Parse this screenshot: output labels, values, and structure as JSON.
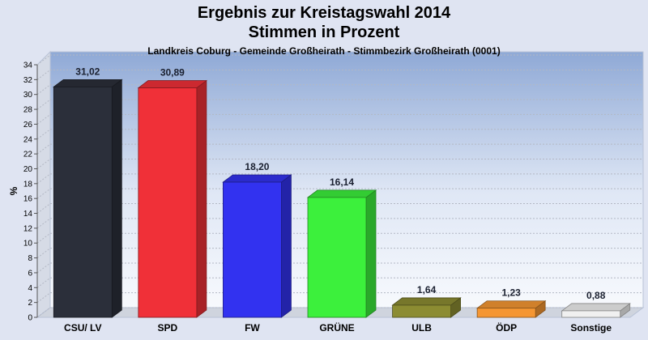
{
  "header": {
    "title_line1": "Ergebnis zur Kreistagswahl 2014",
    "title_line2": "Stimmen in Prozent",
    "subtitle": "Landkreis Coburg - Gemeinde Großheirath - Stimmbezirk Großheirath (0001)"
  },
  "chart_data": {
    "type": "bar",
    "title": "Ergebnis zur Kreistagswahl 2014",
    "subtitle": "Stimmen in Prozent",
    "xlabel": "",
    "ylabel": "%",
    "ylim": [
      0,
      34
    ],
    "ytick_step": 2,
    "grid": true,
    "categories": [
      "CSU/ LV",
      "SPD",
      "FW",
      "GRÜNE",
      "ULB",
      "ÖDP",
      "Sonstige"
    ],
    "values": [
      31.02,
      30.89,
      18.2,
      16.14,
      1.64,
      1.23,
      0.88
    ],
    "value_labels": [
      "31,02",
      "30,89",
      "18,20",
      "16,14",
      "1,64",
      "1,23",
      "0,88"
    ],
    "colors": [
      "#2b2f3a",
      "#f03038",
      "#3232f0",
      "#3cf03c",
      "#8c8c32",
      "#f59632",
      "#f0f0f0"
    ]
  }
}
